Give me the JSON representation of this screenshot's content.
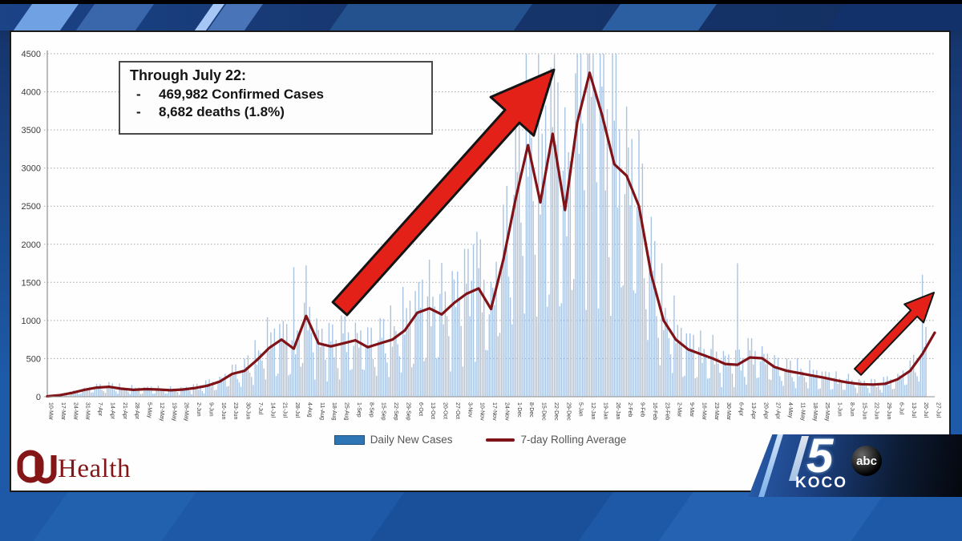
{
  "frame": {
    "station_logo": {
      "number": "5",
      "callsign": "KOCO",
      "network": "abc"
    },
    "source_logo": {
      "org": "OU",
      "text": "Health"
    }
  },
  "annotation_box": {
    "title": "Through July 22:",
    "bullet_char": "-",
    "bullets": [
      "469,982 Confirmed Cases",
      "8,682 deaths (1.8%)"
    ]
  },
  "colors": {
    "bar": "#a9c4e2",
    "line": "#7f1318",
    "legend_bar_swatch": "#2e75b6",
    "legend_bar_border": "#1f4e79",
    "arrow": "#e32119",
    "arrow_outline": "#141414",
    "grid": "#a8a8a8",
    "axis": "#8f8f8f",
    "tick_text": "#3b3b3b",
    "legend_text": "#555555",
    "crimson": "#841617"
  },
  "chart_data": {
    "type": "combo-bar-line",
    "title": "",
    "xlabel": "",
    "ylabel": "",
    "ylim": [
      0,
      4500
    ],
    "ytick_step": 500,
    "grid": "horizontal-dotted",
    "legend_position": "bottom-center",
    "x_weekly_labels": [
      "10-Mar",
      "17-Mar",
      "24-Mar",
      "31-Mar",
      "7-Apr",
      "14-Apr",
      "21-Apr",
      "28-Apr",
      "5-May",
      "12-May",
      "19-May",
      "26-May",
      "2-Jun",
      "9-Jun",
      "16-Jun",
      "23-Jun",
      "30-Jun",
      "7-Jul",
      "14-Jul",
      "21-Jul",
      "28-Jul",
      "4-Aug",
      "11-Aug",
      "18-Aug",
      "25-Aug",
      "1-Sep",
      "8-Sep",
      "15-Sep",
      "22-Sep",
      "29-Sep",
      "6-Oct",
      "13-Oct",
      "20-Oct",
      "27-Oct",
      "3-Nov",
      "10-Nov",
      "17-Nov",
      "24-Nov",
      "1-Dec",
      "8-Dec",
      "15-Dec",
      "22-Dec",
      "29-Dec",
      "5-Jan",
      "12-Jan",
      "19-Jan",
      "26-Jan",
      "2-Feb",
      "9-Feb",
      "16-Feb",
      "23-Feb",
      "2-Mar",
      "9-Mar",
      "16-Mar",
      "23-Mar",
      "30-Mar",
      "6-Apr",
      "13-Apr",
      "20-Apr",
      "27-Apr",
      "4-May",
      "11-May",
      "18-May",
      "25-May",
      "1-Jun",
      "8-Jun",
      "15-Jun",
      "22-Jun",
      "29-Jun",
      "6-Jul",
      "13-Jul",
      "20-Jul",
      "27-Jul"
    ],
    "series": [
      {
        "name": "Daily New Cases",
        "type": "bar"
      },
      {
        "name": "7-day Rolling Average",
        "type": "line",
        "weekly_values": [
          5,
          20,
          50,
          90,
          120,
          130,
          105,
          90,
          100,
          95,
          85,
          95,
          115,
          145,
          200,
          300,
          340,
          480,
          640,
          750,
          630,
          1060,
          700,
          660,
          700,
          740,
          650,
          700,
          750,
          870,
          1100,
          1160,
          1080,
          1230,
          1350,
          1420,
          1150,
          1800,
          2600,
          3300,
          2550,
          3450,
          2450,
          3600,
          4250,
          3700,
          3050,
          2900,
          2500,
          1600,
          1000,
          750,
          620,
          560,
          500,
          430,
          420,
          515,
          505,
          390,
          340,
          310,
          280,
          250,
          215,
          185,
          165,
          160,
          170,
          230,
          340,
          560,
          840
        ]
      }
    ],
    "bar_generation": {
      "weekday_factors": [
        1.25,
        1.15,
        1.1,
        1.05,
        0.55,
        0.4,
        1.3
      ],
      "noise_cycle": [
        1.0,
        0.82,
        1.18,
        0.95,
        1.3,
        0.75,
        1.12,
        0.88,
        1.24,
        0.7,
        1.05
      ],
      "spikes": {
        "140": 1700,
        "242": 2000,
        "392": 1750,
        "497": 1600
      }
    },
    "legend": [
      {
        "label": "Daily New Cases",
        "swatch": "bar"
      },
      {
        "label": "7-day Rolling Average",
        "swatch": "line"
      }
    ]
  },
  "arrows": [
    {
      "name": "trend-arrow-large",
      "from": [
        410,
        345
      ],
      "to": [
        677,
        47
      ],
      "shaft": 24,
      "head_w": 72,
      "head_l": 78,
      "stroke": 3
    },
    {
      "name": "trend-arrow-small",
      "from": [
        1056,
        424
      ],
      "to": [
        1151,
        325
      ],
      "shaft": 11,
      "head_w": 33,
      "head_l": 36,
      "stroke": 2
    }
  ]
}
